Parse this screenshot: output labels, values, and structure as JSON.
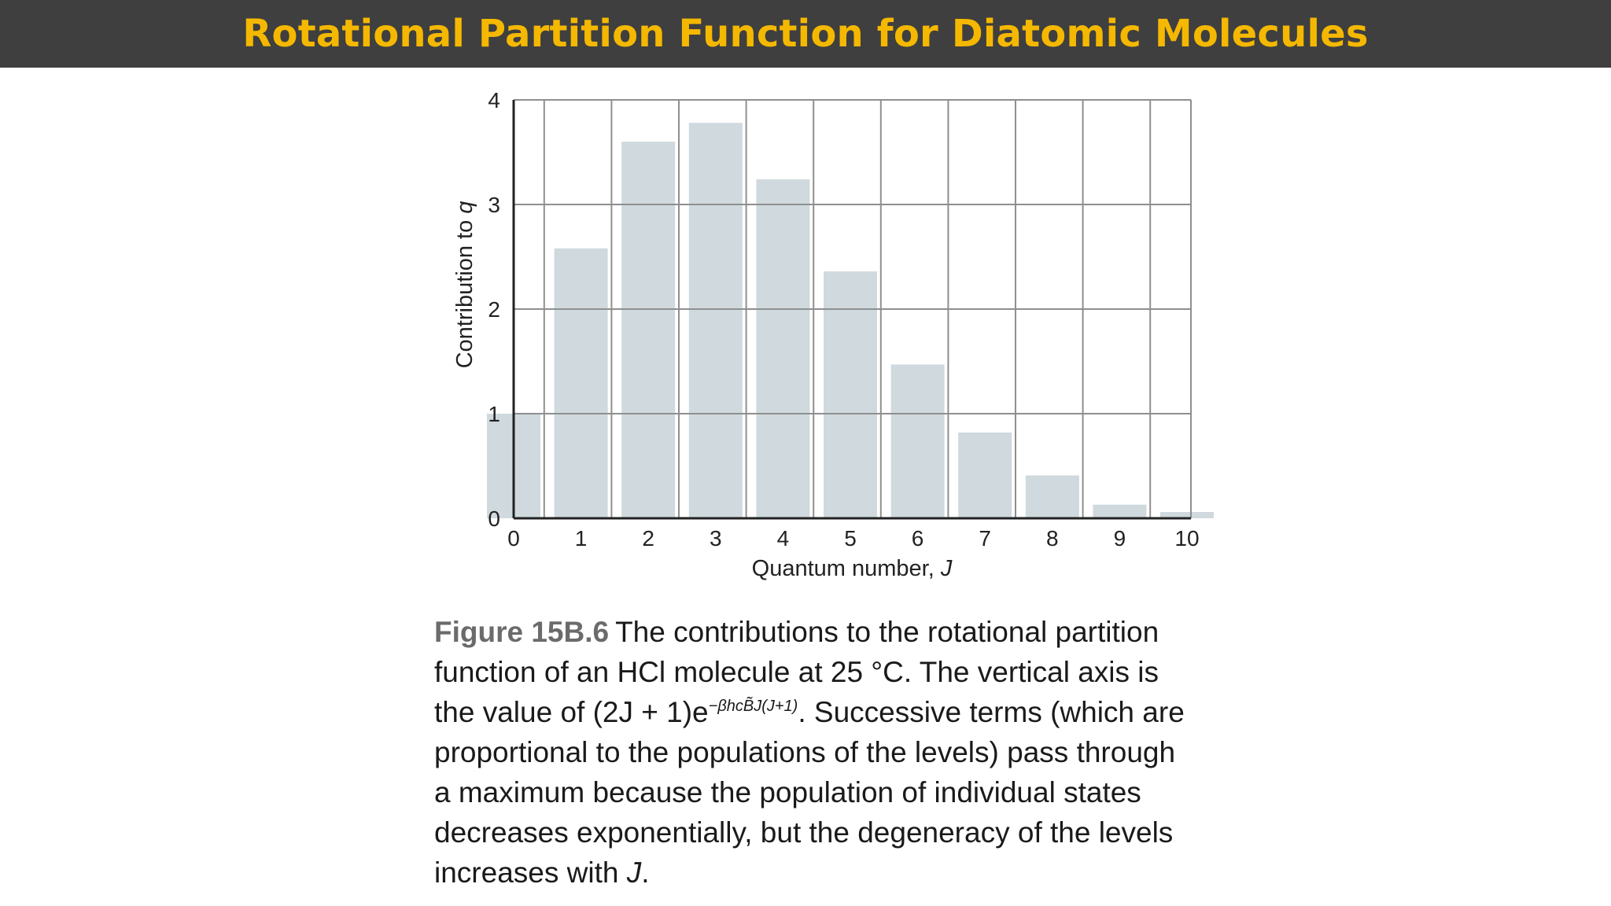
{
  "slide": {
    "title": "Rotational Partition Function for Diatomic Molecules"
  },
  "colors": {
    "title_bar": "#3f3f3f",
    "title_text": "#f5b800",
    "bar_fill": "#cfd9de",
    "grid": "#8f8f8f",
    "axis": "#222222"
  },
  "chart_data": {
    "type": "bar",
    "categories": [
      "0",
      "1",
      "2",
      "3",
      "4",
      "5",
      "6",
      "7",
      "8",
      "9",
      "10"
    ],
    "values": [
      1.0,
      2.58,
      3.6,
      3.78,
      3.24,
      2.36,
      1.47,
      0.82,
      0.41,
      0.13,
      0.06
    ],
    "xlabel": "Quantum number, J",
    "ylabel": "Contribution to q",
    "ylim": [
      0,
      4
    ],
    "yticks": [
      "0",
      "1",
      "2",
      "3",
      "4"
    ],
    "grid": true
  },
  "caption": {
    "figure_label": "Figure 15B.6",
    "line1": "The contributions to the rotational partition",
    "line2": "function of an HCl molecule at 25 °C. The vertical axis is",
    "line3_pre": "the value of (2J + 1)e",
    "line3_exp": "−βhcB̃J(J+1)",
    "line3_post": ". Successive terms (which are",
    "line4": "proportional to the populations of the levels) pass through",
    "line5": "a maximum because the population of individual states",
    "line6": "decreases exponentially, but the degeneracy of the levels",
    "line7_pre": "increases with ",
    "line7_var": "J",
    "line7_post": "."
  }
}
